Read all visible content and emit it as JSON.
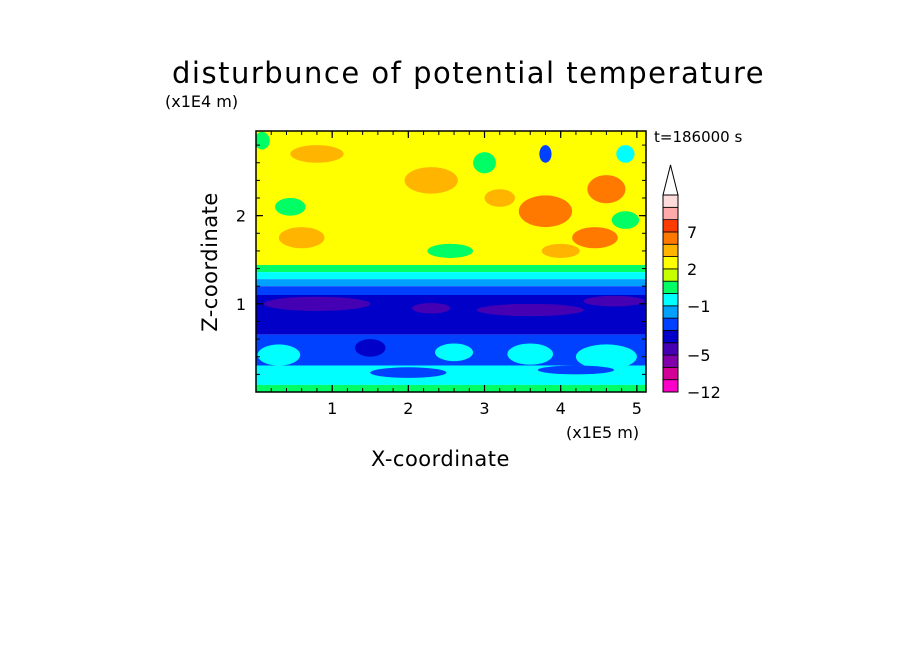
{
  "chart_data": {
    "type": "heatmap",
    "title": "disturbunce of potential temperature",
    "xlabel": "X-coordinate",
    "ylabel": "Z-coordinate",
    "x_scale_label": "(x1E5 m)",
    "y_scale_label": "(x1E4 m)",
    "time_label": "t=186000 s",
    "xlim": [
      0,
      5.12
    ],
    "ylim": [
      0,
      2.96
    ],
    "x_ticks": [
      1,
      2,
      3,
      4,
      5
    ],
    "x_tick_labels": [
      "1",
      "2",
      "3",
      "4",
      "5"
    ],
    "y_ticks": [
      1,
      2
    ],
    "y_tick_labels": [
      "1",
      "2"
    ],
    "colorbar": {
      "levels": [
        -12,
        -9,
        -7,
        -5,
        -4,
        -3,
        -2,
        -1,
        0,
        1,
        2,
        3,
        5,
        7,
        9,
        11,
        13
      ],
      "colors": [
        "#ff00c8",
        "#d20096",
        "#8200aa",
        "#4600b4",
        "#0000c8",
        "#0041ff",
        "#00a0ff",
        "#00ffff",
        "#00ff64",
        "#c8ff00",
        "#ffff00",
        "#ffb400",
        "#ff7800",
        "#ff3c00",
        "#ffaaaa",
        "#ffdcdc"
      ],
      "tick_labels": [
        "-12",
        "-5",
        "-1",
        "2",
        "7"
      ],
      "extend": "max"
    },
    "field_bands": [
      {
        "z_bottom": 1.44,
        "z_top": 2.96,
        "value": 1.5,
        "color": "#ffff00"
      },
      {
        "z_bottom": 1.36,
        "z_top": 1.44,
        "value": 0.5,
        "color": "#00ff64"
      },
      {
        "z_bottom": 1.28,
        "z_top": 1.36,
        "value": -0.5,
        "color": "#00ffff"
      },
      {
        "z_bottom": 1.2,
        "z_top": 1.28,
        "value": -1.5,
        "color": "#00a0ff"
      },
      {
        "z_bottom": 1.1,
        "z_top": 1.2,
        "value": -2.5,
        "color": "#0041ff"
      },
      {
        "z_bottom": 0.65,
        "z_top": 1.1,
        "value": -4.5,
        "color": "#0000c8"
      },
      {
        "z_bottom": 0.3,
        "z_top": 0.65,
        "value": -3.5,
        "color": "#0041ff"
      },
      {
        "z_bottom": 0.08,
        "z_top": 0.3,
        "value": -1.5,
        "color": "#00ffff"
      },
      {
        "z_bottom": 0.0,
        "z_top": 0.08,
        "value": 0.5,
        "color": "#00ff64"
      }
    ],
    "field_features": [
      {
        "x": 3.8,
        "z": 2.05,
        "rx": 0.35,
        "rz": 0.18,
        "value": 4,
        "color": "#ff7800"
      },
      {
        "x": 4.45,
        "z": 1.75,
        "rx": 0.3,
        "rz": 0.12,
        "value": 4,
        "color": "#ff7800"
      },
      {
        "x": 4.6,
        "z": 2.3,
        "rx": 0.25,
        "rz": 0.16,
        "value": 4,
        "color": "#ff7800"
      },
      {
        "x": 3.2,
        "z": 2.2,
        "rx": 0.2,
        "rz": 0.1,
        "value": 2.5,
        "color": "#ffb400"
      },
      {
        "x": 0.6,
        "z": 1.75,
        "rx": 0.3,
        "rz": 0.12,
        "value": 2.5,
        "color": "#ffb400"
      },
      {
        "x": 2.3,
        "z": 2.4,
        "rx": 0.35,
        "rz": 0.15,
        "value": 2.5,
        "color": "#ffb400"
      },
      {
        "x": 0.8,
        "z": 2.7,
        "rx": 0.35,
        "rz": 0.1,
        "value": 2.5,
        "color": "#ffb400"
      },
      {
        "x": 4.0,
        "z": 1.6,
        "rx": 0.25,
        "rz": 0.08,
        "value": 2.5,
        "color": "#ffb400"
      },
      {
        "x": 3.0,
        "z": 2.6,
        "rx": 0.15,
        "rz": 0.12,
        "value": 0.5,
        "color": "#00ff64"
      },
      {
        "x": 0.45,
        "z": 2.1,
        "rx": 0.2,
        "rz": 0.1,
        "value": 0.5,
        "color": "#00ff64"
      },
      {
        "x": 4.85,
        "z": 1.95,
        "rx": 0.18,
        "rz": 0.1,
        "value": 0.5,
        "color": "#00ff64"
      },
      {
        "x": 2.55,
        "z": 1.6,
        "rx": 0.3,
        "rz": 0.08,
        "value": 0.5,
        "color": "#00ff64"
      },
      {
        "x": 0.08,
        "z": 2.85,
        "rx": 0.1,
        "rz": 0.1,
        "value": 0.5,
        "color": "#00ff64"
      },
      {
        "x": 4.85,
        "z": 2.7,
        "rx": 0.12,
        "rz": 0.1,
        "value": -0.5,
        "color": "#00ffff"
      },
      {
        "x": 3.8,
        "z": 2.7,
        "rx": 0.08,
        "rz": 0.1,
        "value": -2.5,
        "color": "#0041ff"
      },
      {
        "x": 0.8,
        "z": 1.0,
        "rx": 0.7,
        "rz": 0.08,
        "value": -6,
        "color": "#4600b4"
      },
      {
        "x": 2.3,
        "z": 0.95,
        "rx": 0.25,
        "rz": 0.06,
        "value": -6,
        "color": "#4600b4"
      },
      {
        "x": 3.6,
        "z": 0.93,
        "rx": 0.7,
        "rz": 0.07,
        "value": -6,
        "color": "#4600b4"
      },
      {
        "x": 4.7,
        "z": 1.03,
        "rx": 0.4,
        "rz": 0.06,
        "value": -6,
        "color": "#4600b4"
      },
      {
        "x": 0.3,
        "z": 0.42,
        "rx": 0.28,
        "rz": 0.12,
        "value": -1.5,
        "color": "#00ffff"
      },
      {
        "x": 2.6,
        "z": 0.45,
        "rx": 0.25,
        "rz": 0.1,
        "value": -1.5,
        "color": "#00ffff"
      },
      {
        "x": 3.6,
        "z": 0.43,
        "rx": 0.3,
        "rz": 0.12,
        "value": -1.5,
        "color": "#00ffff"
      },
      {
        "x": 4.6,
        "z": 0.4,
        "rx": 0.4,
        "rz": 0.14,
        "value": -1.5,
        "color": "#00ffff"
      },
      {
        "x": 1.5,
        "z": 0.5,
        "rx": 0.2,
        "rz": 0.1,
        "value": -4.5,
        "color": "#0000c8"
      },
      {
        "x": 2.0,
        "z": 0.22,
        "rx": 0.5,
        "rz": 0.06,
        "value": -3.5,
        "color": "#0041ff"
      },
      {
        "x": 4.2,
        "z": 0.25,
        "rx": 0.5,
        "rz": 0.05,
        "value": -3.5,
        "color": "#0041ff"
      }
    ]
  }
}
